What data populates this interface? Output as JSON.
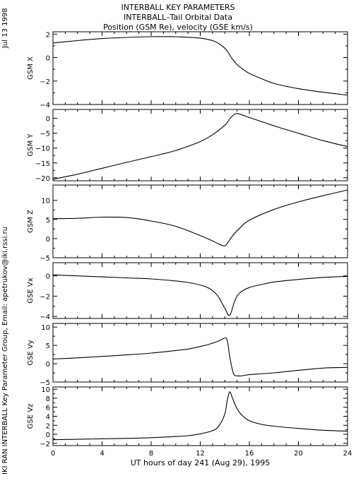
{
  "header": {
    "line1": "INTERBALL KEY PARAMETERS",
    "line2": "INTERBALL–Tail Orbital Data",
    "line3": "Position (GSM Re), velocity (GSE km/s)"
  },
  "side": {
    "date": "Jul 13 1998",
    "credit": "IKI RAN INTERBALL Key Parameter Group, Email: apetrukov@iki.rssi.ru"
  },
  "chart_data": {
    "type": "line",
    "xlabel": "UT hours of day 241 (Aug 29), 1995",
    "xlim": [
      0,
      24
    ],
    "xticks": [
      0,
      4,
      8,
      12,
      16,
      20,
      24
    ],
    "panels": [
      {
        "ylabel": "GSM X",
        "ylim": [
          -4,
          2.2
        ],
        "yticks": [
          -4,
          -2,
          0,
          2
        ],
        "x": [
          0,
          2,
          4,
          6,
          8,
          10,
          12,
          13,
          13.5,
          14,
          14.3,
          14.6,
          15,
          15.5,
          16,
          17,
          18,
          20,
          22,
          24
        ],
        "y": [
          1.25,
          1.45,
          1.62,
          1.72,
          1.78,
          1.78,
          1.65,
          1.45,
          1.2,
          0.8,
          0.4,
          -0.1,
          -0.6,
          -1.0,
          -1.35,
          -1.8,
          -2.2,
          -2.65,
          -2.95,
          -3.2
        ]
      },
      {
        "ylabel": "GSM Y",
        "ylim": [
          -21,
          3
        ],
        "yticks": [
          -20,
          -15,
          -10,
          -5,
          0
        ],
        "x": [
          0,
          2,
          4,
          6,
          8,
          10,
          12,
          13,
          14,
          14.5,
          14.9,
          15.3,
          16,
          18,
          20,
          22,
          24
        ],
        "y": [
          -20.5,
          -18.8,
          -16.8,
          -14.8,
          -12.9,
          -10.8,
          -7.8,
          -5.5,
          -2.3,
          0.3,
          1.6,
          1.3,
          0.3,
          -2.5,
          -5,
          -7.5,
          -9.5
        ]
      },
      {
        "ylabel": "GSM Z",
        "ylim": [
          -5,
          14
        ],
        "yticks": [
          -5,
          0,
          5,
          10
        ],
        "x": [
          0,
          2,
          4,
          6,
          8,
          10,
          12,
          13,
          13.5,
          14,
          14.3,
          14.7,
          15.2,
          16,
          18,
          20,
          22,
          24
        ],
        "y": [
          5.2,
          5.3,
          5.6,
          5.5,
          4.6,
          3.2,
          0.8,
          -0.6,
          -1.4,
          -1.9,
          -0.8,
          1.0,
          2.7,
          4.8,
          7.6,
          9.6,
          11.2,
          12.7
        ]
      },
      {
        "ylabel": "GSE Vx",
        "ylim": [
          -4.2,
          1.3
        ],
        "yticks": [
          -4,
          -2,
          0
        ],
        "x": [
          0,
          2,
          4,
          6,
          8,
          10,
          11,
          12,
          12.5,
          13,
          13.5,
          14,
          14.4,
          14.8,
          15.2,
          16,
          17,
          18,
          20,
          22,
          24
        ],
        "y": [
          0.1,
          0.0,
          -0.1,
          -0.2,
          -0.3,
          -0.5,
          -0.65,
          -0.9,
          -1.1,
          -1.45,
          -2.1,
          -3.2,
          -3.9,
          -2.5,
          -1.7,
          -1.15,
          -0.85,
          -0.6,
          -0.35,
          -0.15,
          -0.05
        ]
      },
      {
        "ylabel": "GSE Vy",
        "ylim": [
          -5,
          11
        ],
        "yticks": [
          -5,
          0,
          5,
          10
        ],
        "x": [
          0,
          2,
          4,
          6,
          8,
          10,
          11,
          12,
          12.5,
          13,
          13.5,
          14,
          14.2,
          14.4,
          14.7,
          15,
          15.4,
          16,
          18,
          20,
          22,
          24
        ],
        "y": [
          1.3,
          1.6,
          2.0,
          2.4,
          2.9,
          3.6,
          4.0,
          4.7,
          5.1,
          5.6,
          6.2,
          7.0,
          6.4,
          2.0,
          -2.6,
          -3.3,
          -3.3,
          -3.0,
          -2.5,
          -1.8,
          -1.2,
          -1.0
        ]
      },
      {
        "ylabel": "GSE Vz",
        "ylim": [
          -2.5,
          10.5
        ],
        "yticks": [
          -2,
          0,
          2,
          4,
          6,
          8,
          10
        ],
        "x": [
          0,
          2,
          4,
          6,
          8,
          10,
          11,
          12,
          13,
          13.5,
          14,
          14.2,
          14.4,
          14.6,
          14.9,
          15.3,
          16,
          17,
          18,
          20,
          22,
          24
        ],
        "y": [
          -1.2,
          -1.1,
          -1.0,
          -0.9,
          -0.75,
          -0.5,
          -0.3,
          0.1,
          0.8,
          1.8,
          4.5,
          7.5,
          9.4,
          8.2,
          6.2,
          4.5,
          3.0,
          2.2,
          1.8,
          1.3,
          0.9,
          0.7
        ]
      }
    ]
  }
}
